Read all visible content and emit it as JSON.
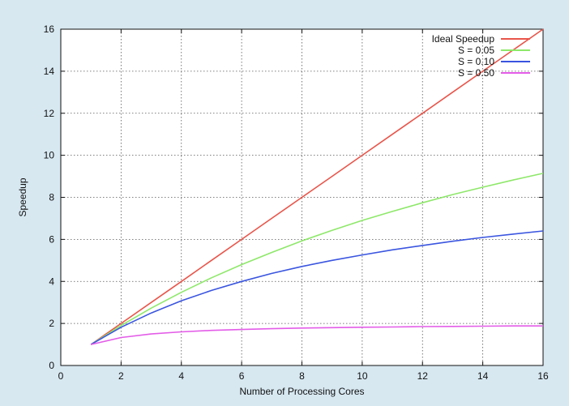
{
  "chart_data": {
    "type": "line",
    "title": "",
    "xlabel": "Number of Processing Cores",
    "ylabel": "Speedup",
    "xlim": [
      0,
      16
    ],
    "ylim": [
      0,
      16
    ],
    "xticks": [
      0,
      2,
      4,
      6,
      8,
      10,
      12,
      14,
      16
    ],
    "yticks": [
      0,
      2,
      4,
      6,
      8,
      10,
      12,
      14,
      16
    ],
    "grid": true,
    "legend_position": "top-right",
    "x": [
      1,
      2,
      3,
      4,
      5,
      6,
      7,
      8,
      9,
      10,
      11,
      12,
      13,
      14,
      15,
      16
    ],
    "series": [
      {
        "name": "Ideal Speedup",
        "color": "#e8554a",
        "values": [
          1,
          2,
          3,
          4,
          5,
          6,
          7,
          8,
          9,
          10,
          11,
          12,
          13,
          14,
          15,
          16
        ]
      },
      {
        "name": "S = 0.05",
        "color": "#8ee86a",
        "values": [
          1,
          1.9,
          2.73,
          3.48,
          4.17,
          4.8,
          5.38,
          5.93,
          6.43,
          6.9,
          7.33,
          7.74,
          8.13,
          8.48,
          8.82,
          9.14
        ]
      },
      {
        "name": "S = 0.10",
        "color": "#3a55e0",
        "values": [
          1,
          1.82,
          2.5,
          3.08,
          3.57,
          4.0,
          4.38,
          4.71,
          5.0,
          5.26,
          5.5,
          5.71,
          5.91,
          6.09,
          6.25,
          6.4
        ]
      },
      {
        "name": "S = 0.50",
        "color": "#e35ce8",
        "values": [
          1,
          1.33,
          1.5,
          1.6,
          1.67,
          1.71,
          1.75,
          1.78,
          1.8,
          1.82,
          1.83,
          1.85,
          1.86,
          1.87,
          1.88,
          1.88
        ]
      }
    ]
  }
}
